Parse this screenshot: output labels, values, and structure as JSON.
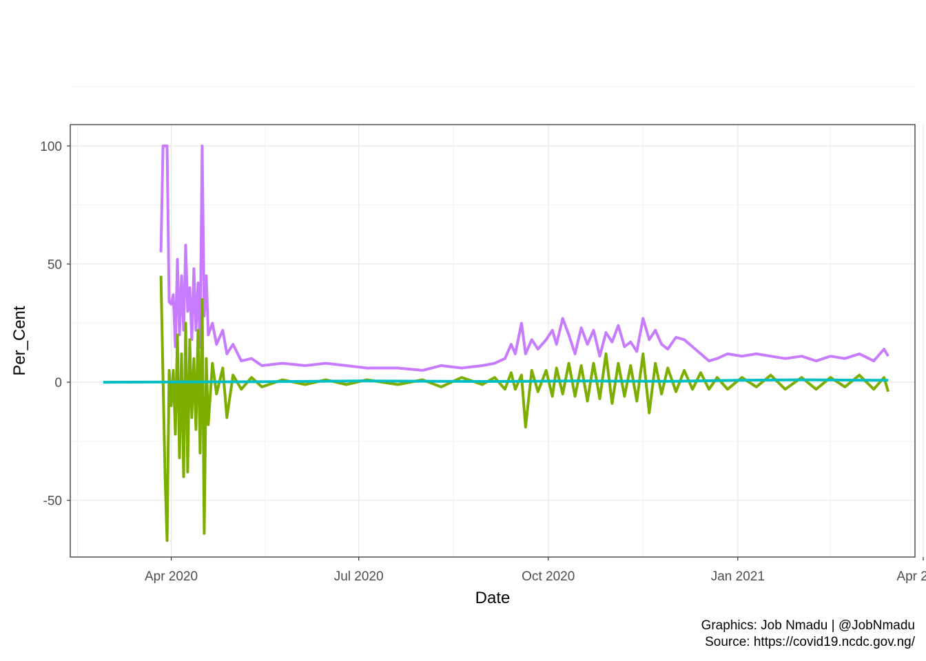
{
  "chart_data": {
    "type": "line",
    "xlabel": "Date",
    "ylabel": "Per_Cent",
    "xlim": [
      "2020-02-12",
      "2021-03-28"
    ],
    "ylim": [
      -74,
      109
    ],
    "x_ticks": [
      {
        "date": "2020-04-01",
        "label": "Apr 2020"
      },
      {
        "date": "2020-07-01",
        "label": "Jul 2020"
      },
      {
        "date": "2020-10-01",
        "label": "Oct 2020"
      },
      {
        "date": "2021-01-01",
        "label": "Jan 2021"
      },
      {
        "date": "2021-04-01",
        "label": "Apr 2021"
      }
    ],
    "y_ticks": [
      {
        "value": 100,
        "label": "100"
      },
      {
        "value": 50,
        "label": "50"
      },
      {
        "value": 0,
        "label": "0"
      },
      {
        "value": -50,
        "label": "-50"
      }
    ],
    "grid": true,
    "legend": "none",
    "series": [
      {
        "color": "#C77CFF",
        "points": [
          [
            "2020-03-27",
            55
          ],
          [
            "2020-03-28",
            100
          ],
          [
            "2020-03-29",
            100
          ],
          [
            "2020-03-30",
            100
          ],
          [
            "2020-03-31",
            34
          ],
          [
            "2020-04-01",
            33
          ],
          [
            "2020-04-02",
            37
          ],
          [
            "2020-04-03",
            15
          ],
          [
            "2020-04-04",
            52
          ],
          [
            "2020-04-05",
            20
          ],
          [
            "2020-04-06",
            45
          ],
          [
            "2020-04-07",
            22
          ],
          [
            "2020-04-08",
            58
          ],
          [
            "2020-04-09",
            30
          ],
          [
            "2020-04-10",
            40
          ],
          [
            "2020-04-11",
            18
          ],
          [
            "2020-04-12",
            48
          ],
          [
            "2020-04-13",
            22
          ],
          [
            "2020-04-14",
            42
          ],
          [
            "2020-04-15",
            15
          ],
          [
            "2020-04-16",
            100
          ],
          [
            "2020-04-17",
            28
          ],
          [
            "2020-04-18",
            45
          ],
          [
            "2020-04-19",
            20
          ],
          [
            "2020-04-21",
            25
          ],
          [
            "2020-04-23",
            16
          ],
          [
            "2020-04-26",
            22
          ],
          [
            "2020-04-28",
            12
          ],
          [
            "2020-05-01",
            16
          ],
          [
            "2020-05-05",
            9
          ],
          [
            "2020-05-10",
            10
          ],
          [
            "2020-05-15",
            7
          ],
          [
            "2020-05-25",
            8
          ],
          [
            "2020-06-05",
            7
          ],
          [
            "2020-06-15",
            8
          ],
          [
            "2020-06-25",
            7
          ],
          [
            "2020-07-05",
            6
          ],
          [
            "2020-07-20",
            6
          ],
          [
            "2020-08-01",
            5
          ],
          [
            "2020-08-10",
            7
          ],
          [
            "2020-08-20",
            6
          ],
          [
            "2020-08-30",
            7
          ],
          [
            "2020-09-05",
            8
          ],
          [
            "2020-09-10",
            10
          ],
          [
            "2020-09-13",
            16
          ],
          [
            "2020-09-15",
            12
          ],
          [
            "2020-09-18",
            25
          ],
          [
            "2020-09-20",
            12
          ],
          [
            "2020-09-23",
            18
          ],
          [
            "2020-09-26",
            14
          ],
          [
            "2020-09-30",
            18
          ],
          [
            "2020-10-03",
            22
          ],
          [
            "2020-10-05",
            16
          ],
          [
            "2020-10-08",
            27
          ],
          [
            "2020-10-11",
            20
          ],
          [
            "2020-10-14",
            12
          ],
          [
            "2020-10-17",
            23
          ],
          [
            "2020-10-20",
            16
          ],
          [
            "2020-10-23",
            22
          ],
          [
            "2020-10-26",
            11
          ],
          [
            "2020-10-29",
            21
          ],
          [
            "2020-11-01",
            17
          ],
          [
            "2020-11-04",
            24
          ],
          [
            "2020-11-07",
            15
          ],
          [
            "2020-11-10",
            17
          ],
          [
            "2020-11-13",
            13
          ],
          [
            "2020-11-16",
            27
          ],
          [
            "2020-11-19",
            18
          ],
          [
            "2020-11-22",
            22
          ],
          [
            "2020-11-25",
            16
          ],
          [
            "2020-11-28",
            14
          ],
          [
            "2020-12-02",
            19
          ],
          [
            "2020-12-06",
            18
          ],
          [
            "2020-12-10",
            15
          ],
          [
            "2020-12-14",
            12
          ],
          [
            "2020-12-18",
            9
          ],
          [
            "2020-12-22",
            10
          ],
          [
            "2020-12-27",
            12
          ],
          [
            "2021-01-03",
            11
          ],
          [
            "2021-01-10",
            12
          ],
          [
            "2021-01-17",
            11
          ],
          [
            "2021-01-24",
            10
          ],
          [
            "2021-02-01",
            11
          ],
          [
            "2021-02-08",
            9
          ],
          [
            "2021-02-15",
            11
          ],
          [
            "2021-02-22",
            10
          ],
          [
            "2021-03-01",
            12
          ],
          [
            "2021-03-08",
            9
          ],
          [
            "2021-03-13",
            14
          ],
          [
            "2021-03-15",
            11
          ]
        ]
      },
      {
        "color": "#7CAE00",
        "points": [
          [
            "2020-03-27",
            45
          ],
          [
            "2020-03-28",
            2
          ],
          [
            "2020-03-29",
            -40
          ],
          [
            "2020-03-30",
            -67
          ],
          [
            "2020-03-31",
            5
          ],
          [
            "2020-04-01",
            -10
          ],
          [
            "2020-04-02",
            5
          ],
          [
            "2020-04-03",
            -22
          ],
          [
            "2020-04-04",
            20
          ],
          [
            "2020-04-05",
            -32
          ],
          [
            "2020-04-06",
            12
          ],
          [
            "2020-04-07",
            -40
          ],
          [
            "2020-04-08",
            25
          ],
          [
            "2020-04-09",
            -38
          ],
          [
            "2020-04-10",
            18
          ],
          [
            "2020-04-11",
            -15
          ],
          [
            "2020-04-12",
            10
          ],
          [
            "2020-04-13",
            -20
          ],
          [
            "2020-04-14",
            22
          ],
          [
            "2020-04-15",
            -30
          ],
          [
            "2020-04-16",
            35
          ],
          [
            "2020-04-17",
            -64
          ],
          [
            "2020-04-18",
            10
          ],
          [
            "2020-04-19",
            -18
          ],
          [
            "2020-04-21",
            8
          ],
          [
            "2020-04-23",
            -5
          ],
          [
            "2020-04-26",
            6
          ],
          [
            "2020-04-28",
            -15
          ],
          [
            "2020-05-01",
            3
          ],
          [
            "2020-05-05",
            -3
          ],
          [
            "2020-05-10",
            2
          ],
          [
            "2020-05-15",
            -2
          ],
          [
            "2020-05-25",
            1
          ],
          [
            "2020-06-05",
            -1
          ],
          [
            "2020-06-15",
            1
          ],
          [
            "2020-06-25",
            -1
          ],
          [
            "2020-07-05",
            1
          ],
          [
            "2020-07-20",
            -1
          ],
          [
            "2020-08-01",
            1
          ],
          [
            "2020-08-10",
            -2
          ],
          [
            "2020-08-20",
            2
          ],
          [
            "2020-08-30",
            -1
          ],
          [
            "2020-09-05",
            2
          ],
          [
            "2020-09-10",
            -3
          ],
          [
            "2020-09-13",
            4
          ],
          [
            "2020-09-15",
            -3
          ],
          [
            "2020-09-18",
            3
          ],
          [
            "2020-09-20",
            -19
          ],
          [
            "2020-09-23",
            5
          ],
          [
            "2020-09-26",
            -4
          ],
          [
            "2020-09-30",
            5
          ],
          [
            "2020-10-03",
            -6
          ],
          [
            "2020-10-05",
            6
          ],
          [
            "2020-10-08",
            -5
          ],
          [
            "2020-10-11",
            8
          ],
          [
            "2020-10-14",
            -6
          ],
          [
            "2020-10-17",
            7
          ],
          [
            "2020-10-20",
            -8
          ],
          [
            "2020-10-23",
            8
          ],
          [
            "2020-10-26",
            -7
          ],
          [
            "2020-10-29",
            12
          ],
          [
            "2020-11-01",
            -9
          ],
          [
            "2020-11-04",
            8
          ],
          [
            "2020-11-07",
            -6
          ],
          [
            "2020-11-10",
            7
          ],
          [
            "2020-11-13",
            -8
          ],
          [
            "2020-11-16",
            12
          ],
          [
            "2020-11-19",
            -13
          ],
          [
            "2020-11-22",
            8
          ],
          [
            "2020-11-25",
            -5
          ],
          [
            "2020-11-28",
            6
          ],
          [
            "2020-12-02",
            -4
          ],
          [
            "2020-12-06",
            5
          ],
          [
            "2020-12-10",
            -3
          ],
          [
            "2020-12-14",
            4
          ],
          [
            "2020-12-18",
            -3
          ],
          [
            "2020-12-22",
            2
          ],
          [
            "2020-12-27",
            -3
          ],
          [
            "2021-01-03",
            2
          ],
          [
            "2021-01-10",
            -2
          ],
          [
            "2021-01-17",
            3
          ],
          [
            "2021-01-24",
            -3
          ],
          [
            "2021-02-01",
            2
          ],
          [
            "2021-02-08",
            -3
          ],
          [
            "2021-02-15",
            2
          ],
          [
            "2021-02-22",
            -2
          ],
          [
            "2021-03-01",
            3
          ],
          [
            "2021-03-08",
            -3
          ],
          [
            "2021-03-13",
            2
          ],
          [
            "2021-03-15",
            -4
          ]
        ]
      },
      {
        "color": "#00BFC4",
        "points": [
          [
            "2020-02-28",
            0
          ],
          [
            "2020-05-15",
            0.2
          ],
          [
            "2020-07-01",
            0.5
          ],
          [
            "2020-09-01",
            0.3
          ],
          [
            "2020-10-15",
            0.5
          ],
          [
            "2020-12-01",
            0.4
          ],
          [
            "2021-01-01",
            0.8
          ],
          [
            "2021-02-01",
            1
          ],
          [
            "2021-03-15",
            0.8
          ]
        ]
      }
    ]
  },
  "caption": {
    "line1": "Graphics: Job Nmadu | @JobNmadu",
    "line2": "Source: https://covid19.ncdc.gov.ng/"
  }
}
